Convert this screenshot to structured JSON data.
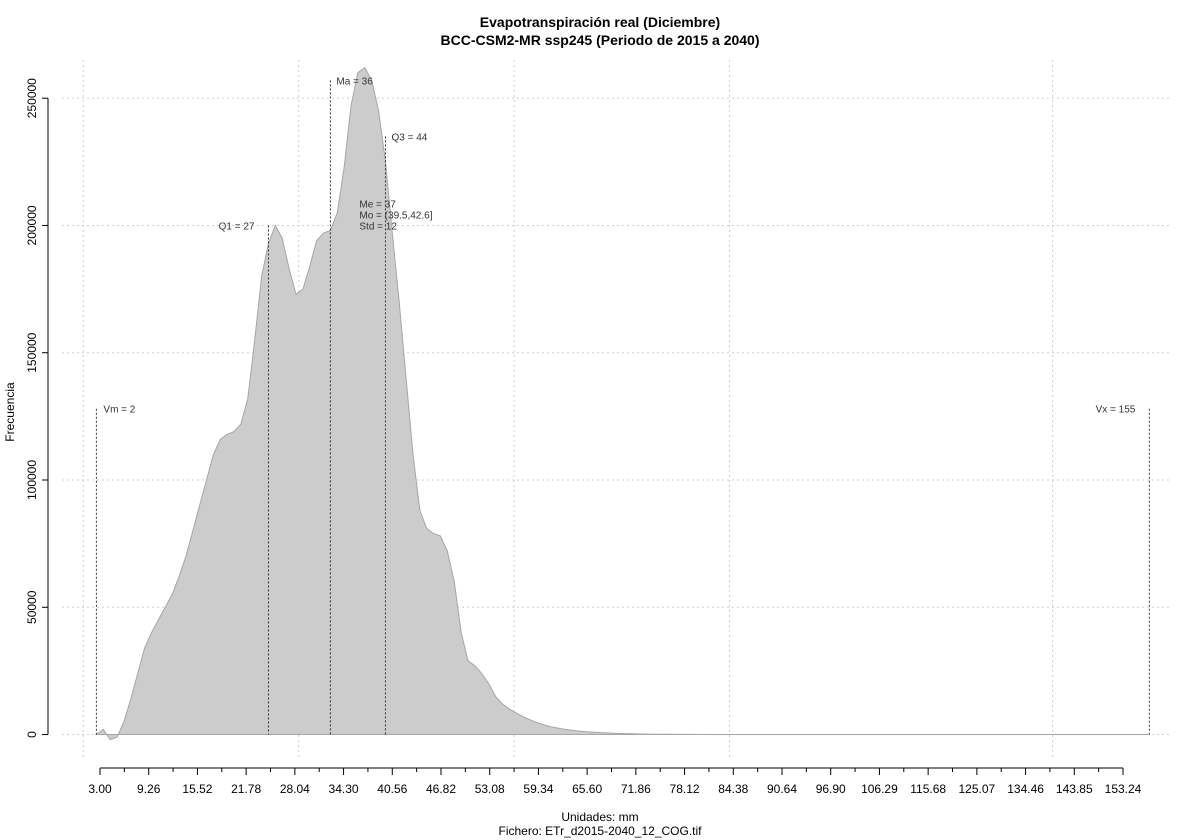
{
  "chart_data": {
    "type": "area",
    "title": "Evapotranspiración real (Diciembre)",
    "subtitle": "BCC-CSM2-MR ssp245 (Periodo de 2015 a 2040)",
    "xlabel": "Unidades: mm",
    "caption": "Fichero: ETr_d2015-2040_12_COG.tif",
    "ylabel": "Frecuencia",
    "xlim": [
      -3,
      158
    ],
    "ylim": [
      -10000,
      265000
    ],
    "x_ticks": [
      "3.00",
      "9.26",
      "15.52",
      "21.78",
      "28.04",
      "34.30",
      "40.56",
      "46.82",
      "53.08",
      "59.34",
      "65.60",
      "71.86",
      "78.12",
      "84.38",
      "90.64",
      "96.90",
      "106.29",
      "115.68",
      "125.07",
      "134.46",
      "143.85",
      "153.24"
    ],
    "y_ticks": [
      "0",
      "50000",
      "100000",
      "150000",
      "200000",
      "250000"
    ],
    "grid": true,
    "fill_color": "#cccccc",
    "line_color": "#a6a6a6",
    "x": [
      2,
      3,
      4,
      5,
      6,
      7,
      8,
      9,
      10,
      11,
      12,
      13,
      14,
      15,
      16,
      17,
      18,
      19,
      20,
      21,
      22,
      23,
      24,
      25,
      26,
      27,
      28,
      29,
      30,
      31,
      32,
      33,
      34,
      35,
      36,
      37,
      38,
      39,
      40,
      41,
      42,
      43,
      44,
      45,
      46,
      47,
      48,
      49,
      50,
      51,
      52,
      53,
      54,
      55,
      56,
      57,
      58,
      59,
      60,
      61,
      62,
      63,
      64,
      65,
      66,
      67,
      68,
      70,
      72,
      74,
      76,
      78,
      80,
      82,
      85,
      88,
      92,
      96,
      100,
      110,
      120,
      130,
      140,
      150,
      155
    ],
    "y": [
      0,
      2000,
      -2000,
      -1000,
      5000,
      14000,
      24000,
      34000,
      40000,
      45000,
      50000,
      55000,
      62000,
      70000,
      80000,
      90000,
      100000,
      110000,
      116000,
      118000,
      119000,
      122000,
      132000,
      155000,
      180000,
      193000,
      200000,
      195000,
      183000,
      173000,
      175000,
      184000,
      194000,
      197000,
      198000,
      205000,
      223000,
      247000,
      260000,
      262000,
      257000,
      245000,
      225000,
      197000,
      170000,
      140000,
      110000,
      88000,
      81000,
      79000,
      78000,
      72000,
      60000,
      40000,
      29000,
      27000,
      24000,
      20000,
      15000,
      12000,
      10000,
      8500,
      7000,
      5800,
      4700,
      3800,
      3100,
      2100,
      1400,
      950,
      650,
      430,
      280,
      180,
      100,
      60,
      30,
      15,
      8,
      4,
      2,
      1,
      0,
      0,
      0
    ],
    "markers": [
      {
        "name": "min",
        "x": 2,
        "top": 128000,
        "label": "Vm = 2",
        "align": "left-right"
      },
      {
        "name": "q1",
        "x": 27,
        "top": 200000,
        "label": "Q1 = 27",
        "align": "left"
      },
      {
        "name": "mean",
        "x": 36,
        "top": 257000,
        "label": "Ma = 36",
        "align": "right"
      },
      {
        "name": "q3",
        "x": 44,
        "top": 235000,
        "label": "Q3 = 44",
        "align": "right"
      },
      {
        "name": "max",
        "x": 155,
        "top": 128000,
        "label": "Vx = 155",
        "align": "left"
      }
    ],
    "stats": {
      "median": "Me = 37",
      "mode": "Mo = (39.5,42.6]",
      "std": "Std = 12"
    }
  }
}
